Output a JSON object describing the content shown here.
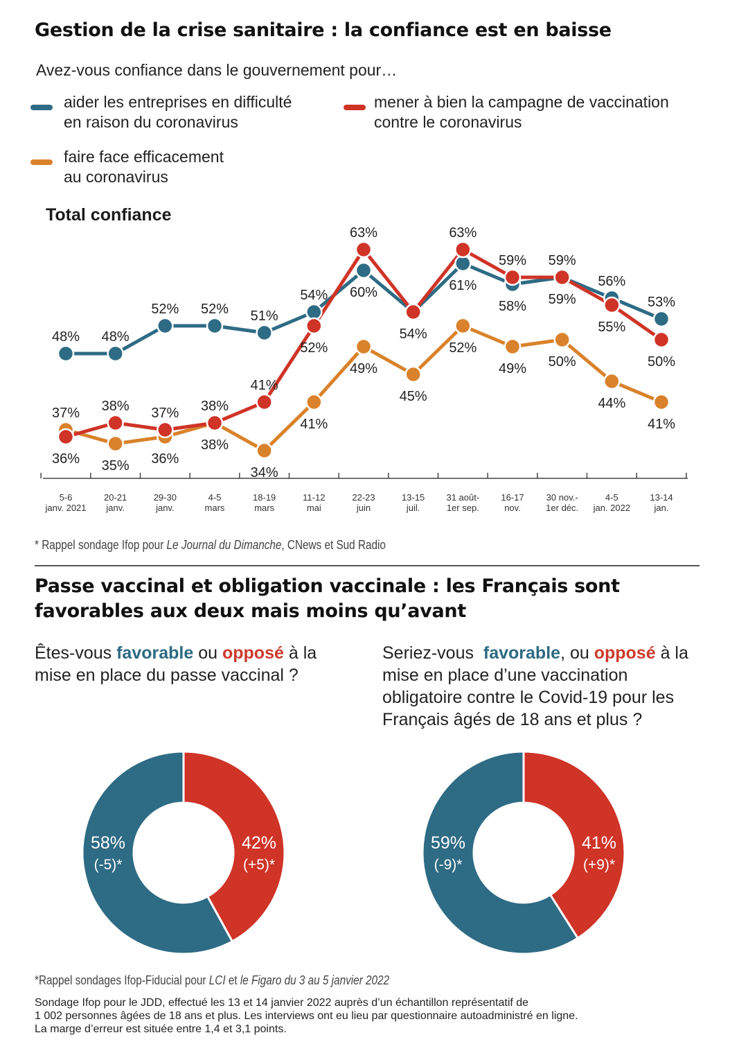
{
  "header": {
    "title": "Gestion de la crise sanitaire : la confiance est en baisse",
    "question": "Avez-vous confiance dans le gouvernement pour…",
    "total_label": "Total confiance"
  },
  "legend": {
    "blue_line1": "aider les entreprises en difficulté",
    "blue_line2": "en raison du coronavirus",
    "red_line1": "mener à bien la campagne de vaccination",
    "red_line2": "contre le coronavirus",
    "orange_line1": "faire face efficacement",
    "orange_line2": "au coronavirus"
  },
  "colors": {
    "blue": "#2e6b85",
    "red": "#cf3427",
    "orange": "#d9822b"
  },
  "chart_data": [
    {
      "type": "line",
      "title": "Total confiance",
      "categories": [
        [
          "5-6",
          "janv. 2021"
        ],
        [
          "20-21",
          "janv."
        ],
        [
          "29-30",
          "janv."
        ],
        [
          "4-5",
          "mars"
        ],
        [
          "18-19",
          "mars"
        ],
        [
          "11-12",
          "mai"
        ],
        [
          "22-23",
          "juin"
        ],
        [
          "13-15",
          "juil."
        ],
        [
          "31 août-",
          "1er sep."
        ],
        [
          "16-17",
          "nov."
        ],
        [
          "30 nov.-",
          "1er déc."
        ],
        [
          "4-5",
          "jan. 2022"
        ],
        [
          "13-14",
          "jan."
        ]
      ],
      "series": [
        {
          "name": "aider les entreprises en difficulté en raison du coronavirus",
          "color": "#2e6b85",
          "values": [
            48,
            48,
            52,
            52,
            51,
            54,
            60,
            54,
            61,
            58,
            59,
            56,
            53
          ]
        },
        {
          "name": "mener à bien la campagne de vaccination contre le coronavirus",
          "color": "#cf3427",
          "values": [
            36,
            38,
            37,
            38,
            41,
            52,
            63,
            54,
            63,
            59,
            59,
            55,
            50
          ]
        },
        {
          "name": "faire face efficacement au coronavirus",
          "color": "#d9822b",
          "values": [
            37,
            35,
            36,
            38,
            34,
            41,
            49,
            45,
            52,
            49,
            50,
            44,
            41
          ]
        }
      ],
      "ylim": [
        30,
        66
      ],
      "point_labels": [
        {
          "series": 0,
          "index": 0,
          "text": "48%",
          "pos": "above"
        },
        {
          "series": 0,
          "index": 1,
          "text": "48%",
          "pos": "above"
        },
        {
          "series": 0,
          "index": 2,
          "text": "52%",
          "pos": "above"
        },
        {
          "series": 0,
          "index": 3,
          "text": "52%",
          "pos": "above"
        },
        {
          "series": 0,
          "index": 4,
          "text": "51%",
          "pos": "above"
        },
        {
          "series": 0,
          "index": 5,
          "text": "54%",
          "pos": "above"
        },
        {
          "series": 0,
          "index": 6,
          "text": "60%",
          "pos": "below"
        },
        {
          "series": 0,
          "index": 8,
          "text": "61%",
          "pos": "below"
        },
        {
          "series": 0,
          "index": 9,
          "text": "58%",
          "pos": "below"
        },
        {
          "series": 0,
          "index": 10,
          "text": "59%",
          "pos": "below"
        },
        {
          "series": 0,
          "index": 11,
          "text": "56%",
          "pos": "above"
        },
        {
          "series": 0,
          "index": 12,
          "text": "53%",
          "pos": "above"
        },
        {
          "series": 1,
          "index": 0,
          "text": "36%",
          "pos": "below"
        },
        {
          "series": 1,
          "index": 1,
          "text": "38%",
          "pos": "above"
        },
        {
          "series": 1,
          "index": 2,
          "text": "37%",
          "pos": "above"
        },
        {
          "series": 1,
          "index": 3,
          "text": "38%",
          "pos": "above"
        },
        {
          "series": 1,
          "index": 4,
          "text": "41%",
          "pos": "above"
        },
        {
          "series": 1,
          "index": 5,
          "text": "52%",
          "pos": "below"
        },
        {
          "series": 1,
          "index": 6,
          "text": "63%",
          "pos": "above"
        },
        {
          "series": 1,
          "index": 7,
          "text": "54%",
          "pos": "below"
        },
        {
          "series": 1,
          "index": 8,
          "text": "63%",
          "pos": "above"
        },
        {
          "series": 1,
          "index": 9,
          "text": "59%",
          "pos": "above"
        },
        {
          "series": 1,
          "index": 10,
          "text": "59%",
          "pos": "above"
        },
        {
          "series": 1,
          "index": 11,
          "text": "55%",
          "pos": "below"
        },
        {
          "series": 1,
          "index": 12,
          "text": "50%",
          "pos": "below"
        },
        {
          "series": 2,
          "index": 0,
          "text": "37%",
          "pos": "above"
        },
        {
          "series": 2,
          "index": 1,
          "text": "35%",
          "pos": "below"
        },
        {
          "series": 2,
          "index": 2,
          "text": "36%",
          "pos": "below"
        },
        {
          "series": 2,
          "index": 3,
          "text": "38%",
          "pos": "below"
        },
        {
          "series": 2,
          "index": 4,
          "text": "34%",
          "pos": "below"
        },
        {
          "series": 2,
          "index": 5,
          "text": "41%",
          "pos": "below"
        },
        {
          "series": 2,
          "index": 6,
          "text": "49%",
          "pos": "below"
        },
        {
          "series": 2,
          "index": 7,
          "text": "45%",
          "pos": "below"
        },
        {
          "series": 2,
          "index": 8,
          "text": "52%",
          "pos": "below"
        },
        {
          "series": 2,
          "index": 9,
          "text": "49%",
          "pos": "below"
        },
        {
          "series": 2,
          "index": 10,
          "text": "50%",
          "pos": "below"
        },
        {
          "series": 2,
          "index": 11,
          "text": "44%",
          "pos": "below"
        },
        {
          "series": 2,
          "index": 12,
          "text": "41%",
          "pos": "below"
        }
      ]
    },
    {
      "type": "pie",
      "variant": "donut",
      "labels": [
        "favorable",
        "opposé"
      ],
      "values": [
        58,
        42
      ],
      "value_texts": [
        "58%",
        "42%"
      ],
      "changes": [
        "(-5)*",
        "(+5)*"
      ]
    },
    {
      "type": "pie",
      "variant": "donut",
      "labels": [
        "favorable",
        "opposé"
      ],
      "values": [
        59,
        41
      ],
      "value_texts": [
        "59%",
        "41%"
      ],
      "changes": [
        "(-9)*",
        "(+9)*"
      ]
    }
  ],
  "note1": {
    "prefix": "* Rappel sondage Ifop pour ",
    "journal": "Le Journal du Dimanche",
    "suffix": ", CNews et Sud Radio"
  },
  "section2": {
    "title_line1": "Passe vaccinal et obligation vaccinale : les Français sont",
    "title_line2": "favorables aux deux mais moins qu’avant"
  },
  "q1": {
    "prefix": "Êtes-vous ",
    "favorable": "favorable",
    "mid": " ou ",
    "oppose": "opposé",
    "rest": "à la mise en place du passe vaccinal ?"
  },
  "q2": {
    "prefix": "Seriez-vous  ",
    "favorable": "favorable",
    "mid": ", ou ",
    "oppose": "opposé",
    "rest": "à la mise en place d’une vaccination obligatoire contre le Covid-19 pour les Français âgés de 18 ans et plus ?"
  },
  "note2": {
    "prefix": "*Rappel sondages Ifop-Fiducial pour ",
    "lci": "LCI",
    "mid": " et ",
    "rest": "le Figaro du 3 au 5 janvier 2022"
  },
  "footer": {
    "line1": "Sondage Ifop pour le JDD, effectué les 13 et 14 janvier 2022 auprès d’un échantillon représentatif de",
    "line2": "1 002 personnes âgées de 18 ans et plus. Les interviews ont eu lieu par questionnaire autoadministré en ligne.",
    "line3": "La marge d’erreur est située entre 1,4 et 3,1 points."
  }
}
